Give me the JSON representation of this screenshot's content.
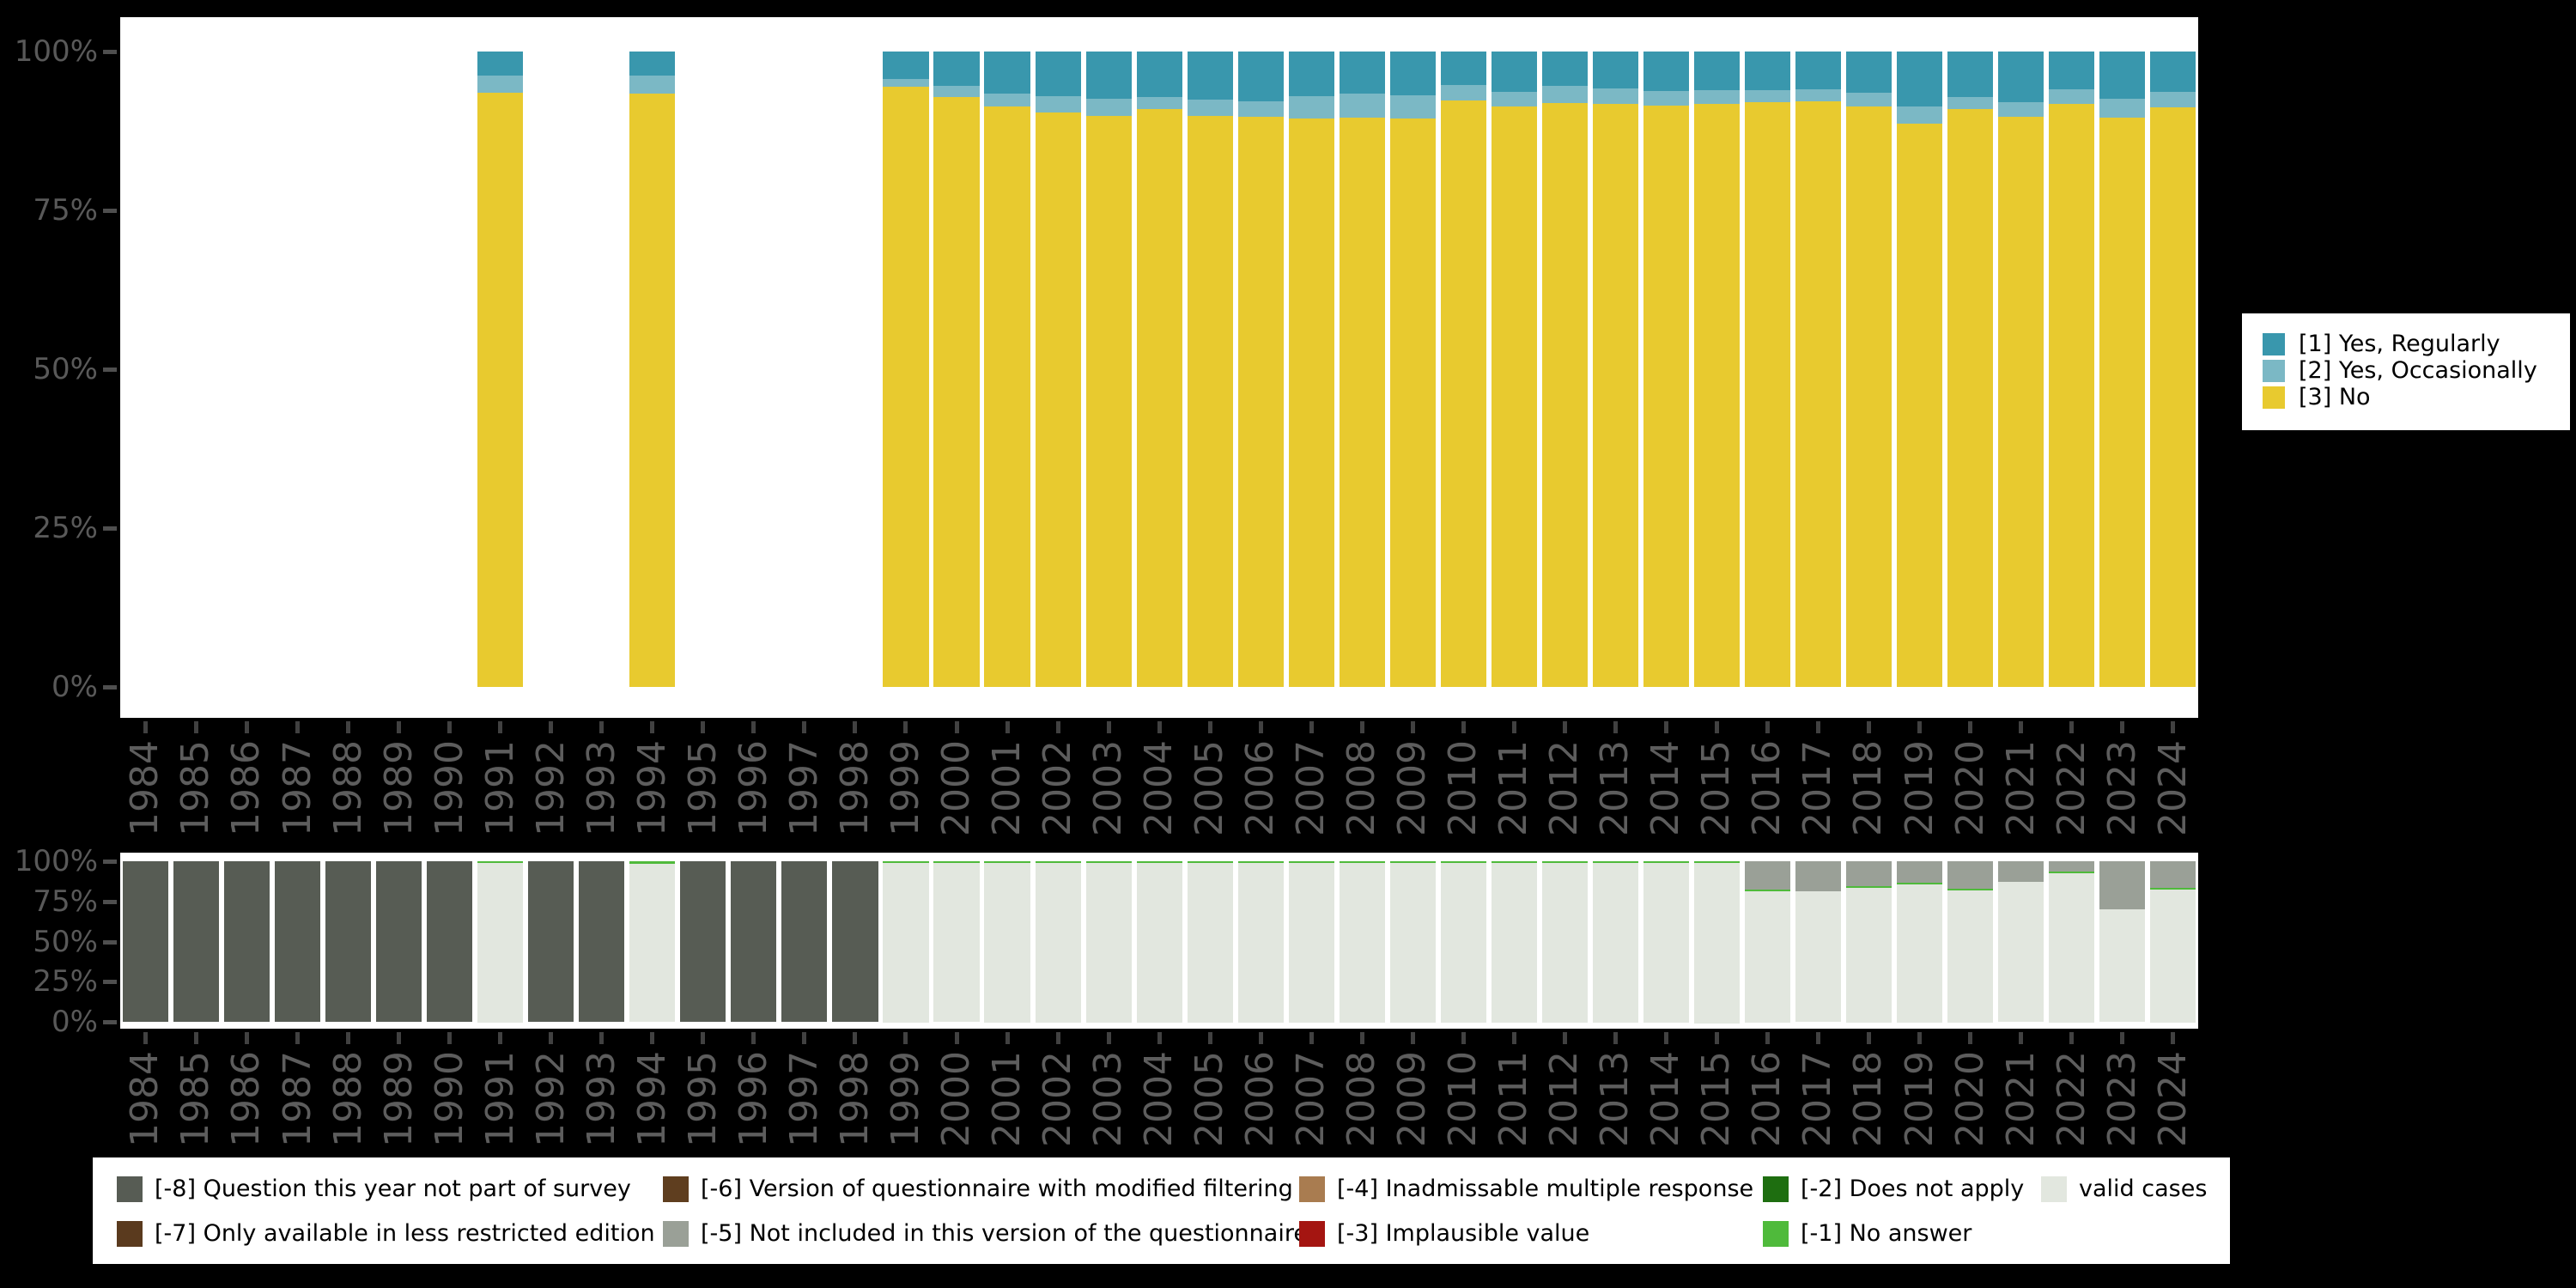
{
  "chart_data": [
    {
      "id": "response-distribution-by-year",
      "type": "bar",
      "stacked": true,
      "unit": "percent",
      "grid": false,
      "legend_position": "right",
      "ylim": [
        0,
        100
      ],
      "y_tick_labels": [
        "100%",
        "75%",
        "50%",
        "25%",
        "0%"
      ],
      "x_tick_labels": [
        "1984",
        "1985",
        "1986",
        "1987",
        "1988",
        "1989",
        "1990",
        "1991",
        "1992",
        "1993",
        "1994",
        "1995",
        "1996",
        "1997",
        "1998",
        "1999",
        "2000",
        "2001",
        "2002",
        "2003",
        "2004",
        "2005",
        "2006",
        "2007",
        "2008",
        "2009",
        "2010",
        "2011",
        "2012",
        "2013",
        "2014",
        "2015",
        "2016",
        "2017",
        "2018",
        "2019",
        "2020",
        "2021",
        "2022",
        "2023",
        "2024"
      ],
      "series": [
        {
          "code": "1",
          "name": "[1] Yes, Regularly",
          "color": "#3997AD"
        },
        {
          "code": "2",
          "name": "[2] Yes, Occasionally",
          "color": "#7BB8C5"
        },
        {
          "code": "3",
          "name": "[3] No",
          "color": "#E8CA2F"
        }
      ],
      "bars_order": "top-to-bottom",
      "bars": {
        "1991": [
          [
            "1",
            3.8
          ],
          [
            "2",
            2.7
          ],
          [
            "3",
            93.5
          ]
        ],
        "1994": [
          [
            "1",
            3.8
          ],
          [
            "2",
            2.8
          ],
          [
            "3",
            93.4
          ]
        ],
        "1999": [
          [
            "1",
            4.3
          ],
          [
            "2",
            1.2
          ],
          [
            "3",
            94.5
          ]
        ],
        "2000": [
          [
            "1",
            5.4
          ],
          [
            "2",
            1.8
          ],
          [
            "3",
            92.8
          ]
        ],
        "2001": [
          [
            "1",
            6.6
          ],
          [
            "2",
            2.0
          ],
          [
            "3",
            91.4
          ]
        ],
        "2002": [
          [
            "1",
            7.0
          ],
          [
            "2",
            2.6
          ],
          [
            "3",
            90.4
          ]
        ],
        "2003": [
          [
            "1",
            7.4
          ],
          [
            "2",
            2.8
          ],
          [
            "3",
            89.8
          ]
        ],
        "2004": [
          [
            "1",
            7.2
          ],
          [
            "2",
            1.9
          ],
          [
            "3",
            90.9
          ]
        ],
        "2005": [
          [
            "1",
            7.6
          ],
          [
            "2",
            2.6
          ],
          [
            "3",
            89.8
          ]
        ],
        "2006": [
          [
            "1",
            7.8
          ],
          [
            "2",
            2.5
          ],
          [
            "3",
            89.7
          ]
        ],
        "2007": [
          [
            "1",
            7.0
          ],
          [
            "2",
            3.5
          ],
          [
            "3",
            89.5
          ]
        ],
        "2008": [
          [
            "1",
            6.6
          ],
          [
            "2",
            3.8
          ],
          [
            "3",
            89.6
          ]
        ],
        "2009": [
          [
            "1",
            6.9
          ],
          [
            "2",
            3.6
          ],
          [
            "3",
            89.5
          ]
        ],
        "2010": [
          [
            "1",
            5.3
          ],
          [
            "2",
            2.4
          ],
          [
            "3",
            92.3
          ]
        ],
        "2011": [
          [
            "1",
            6.3
          ],
          [
            "2",
            2.4
          ],
          [
            "3",
            91.3
          ]
        ],
        "2012": [
          [
            "1",
            5.4
          ],
          [
            "2",
            2.7
          ],
          [
            "3",
            91.9
          ]
        ],
        "2013": [
          [
            "1",
            5.8
          ],
          [
            "2",
            2.4
          ],
          [
            "3",
            91.8
          ]
        ],
        "2014": [
          [
            "1",
            6.2
          ],
          [
            "2",
            2.3
          ],
          [
            "3",
            91.5
          ]
        ],
        "2015": [
          [
            "1",
            6.1
          ],
          [
            "2",
            2.2
          ],
          [
            "3",
            91.7
          ]
        ],
        "2016": [
          [
            "1",
            6.1
          ],
          [
            "2",
            1.9
          ],
          [
            "3",
            92.0
          ]
        ],
        "2017": [
          [
            "1",
            6.0
          ],
          [
            "2",
            1.9
          ],
          [
            "3",
            92.1
          ]
        ],
        "2018": [
          [
            "1",
            6.5
          ],
          [
            "2",
            2.1
          ],
          [
            "3",
            91.4
          ]
        ],
        "2019": [
          [
            "1",
            8.6
          ],
          [
            "2",
            2.7
          ],
          [
            "3",
            88.7
          ]
        ],
        "2020": [
          [
            "1",
            7.1
          ],
          [
            "2",
            2.0
          ],
          [
            "3",
            90.9
          ]
        ],
        "2021": [
          [
            "1",
            8.0
          ],
          [
            "2",
            2.3
          ],
          [
            "3",
            89.7
          ]
        ],
        "2022": [
          [
            "1",
            6.0
          ],
          [
            "2",
            2.3
          ],
          [
            "3",
            91.7
          ]
        ],
        "2023": [
          [
            "1",
            7.4
          ],
          [
            "2",
            3.0
          ],
          [
            "3",
            89.6
          ]
        ],
        "2024": [
          [
            "1",
            6.4
          ],
          [
            "2",
            2.4
          ],
          [
            "3",
            91.2
          ]
        ]
      }
    },
    {
      "id": "missing-values-by-year",
      "type": "bar",
      "stacked": true,
      "unit": "percent",
      "grid": false,
      "legend_position": "bottom",
      "ylim": [
        0,
        100
      ],
      "y_tick_labels": [
        "100%",
        "75%",
        "50%",
        "25%",
        "0%"
      ],
      "x_tick_labels": [
        "1984",
        "1985",
        "1986",
        "1987",
        "1988",
        "1989",
        "1990",
        "1991",
        "1992",
        "1993",
        "1994",
        "1995",
        "1996",
        "1997",
        "1998",
        "1999",
        "2000",
        "2001",
        "2002",
        "2003",
        "2004",
        "2005",
        "2006",
        "2007",
        "2008",
        "2009",
        "2010",
        "2011",
        "2012",
        "2013",
        "2014",
        "2015",
        "2016",
        "2017",
        "2018",
        "2019",
        "2020",
        "2021",
        "2022",
        "2023",
        "2024"
      ],
      "series": [
        {
          "code": "-8",
          "name": "[-8] Question this year not part of survey",
          "color": "#575C54"
        },
        {
          "code": "-7",
          "name": "[-7] Only available in less restricted edition",
          "color": "#5A3A1E"
        },
        {
          "code": "-6",
          "name": "[-6] Version of questionnaire with modified filtering",
          "color": "#5F3E1F"
        },
        {
          "code": "-5",
          "name": "[-5] Not included in this version of the questionnaire",
          "color": "#9AA097"
        },
        {
          "code": "-4",
          "name": "[-4] Inadmissable multiple response",
          "color": "#A97C50"
        },
        {
          "code": "-3",
          "name": "[-3] Implausible value",
          "color": "#A41511"
        },
        {
          "code": "-2",
          "name": "[-2] Does not apply",
          "color": "#1E6E10"
        },
        {
          "code": "-1",
          "name": "[-1] No answer",
          "color": "#4FBA3B"
        },
        {
          "code": "valid",
          "name": "valid cases",
          "color": "#E2E7DF"
        }
      ],
      "bars_order": "top-to-bottom",
      "bars": {
        "1984": [
          [
            "-8",
            100
          ]
        ],
        "1985": [
          [
            "-8",
            100
          ]
        ],
        "1986": [
          [
            "-8",
            100
          ]
        ],
        "1987": [
          [
            "-8",
            100
          ]
        ],
        "1988": [
          [
            "-8",
            100
          ]
        ],
        "1989": [
          [
            "-8",
            100
          ]
        ],
        "1990": [
          [
            "-8",
            100
          ]
        ],
        "1991": [
          [
            "-1",
            0.8
          ],
          [
            "valid",
            99.2
          ]
        ],
        "1992": [
          [
            "-8",
            100
          ]
        ],
        "1993": [
          [
            "-8",
            100
          ]
        ],
        "1994": [
          [
            "-1",
            1.4
          ],
          [
            "valid",
            98.6
          ]
        ],
        "1995": [
          [
            "-8",
            100
          ]
        ],
        "1996": [
          [
            "-8",
            100
          ]
        ],
        "1997": [
          [
            "-8",
            100
          ]
        ],
        "1998": [
          [
            "-8",
            100
          ]
        ],
        "1999": [
          [
            "-1",
            0.4
          ],
          [
            "valid",
            99.6
          ]
        ],
        "2000": [
          [
            "-1",
            1.0
          ],
          [
            "valid",
            99.0
          ]
        ],
        "2001": [
          [
            "-1",
            0.4
          ],
          [
            "valid",
            99.6
          ]
        ],
        "2002": [
          [
            "-1",
            0.4
          ],
          [
            "valid",
            99.6
          ]
        ],
        "2003": [
          [
            "-1",
            0.4
          ],
          [
            "valid",
            99.6
          ]
        ],
        "2004": [
          [
            "-1",
            0.3
          ],
          [
            "valid",
            99.7
          ]
        ],
        "2005": [
          [
            "-1",
            0.3
          ],
          [
            "valid",
            99.7
          ]
        ],
        "2006": [
          [
            "-1",
            0.3
          ],
          [
            "valid",
            99.7
          ]
        ],
        "2007": [
          [
            "-1",
            0.4
          ],
          [
            "valid",
            99.6
          ]
        ],
        "2008": [
          [
            "-1",
            0.4
          ],
          [
            "valid",
            99.6
          ]
        ],
        "2009": [
          [
            "-1",
            0.8
          ],
          [
            "valid",
            99.2
          ]
        ],
        "2010": [
          [
            "-1",
            0.4
          ],
          [
            "valid",
            99.6
          ]
        ],
        "2011": [
          [
            "-1",
            0.3
          ],
          [
            "valid",
            99.7
          ]
        ],
        "2012": [
          [
            "-1",
            0.3
          ],
          [
            "valid",
            99.7
          ]
        ],
        "2013": [
          [
            "-1",
            0.4
          ],
          [
            "valid",
            99.6
          ]
        ],
        "2014": [
          [
            "-1",
            0.3
          ],
          [
            "valid",
            99.7
          ]
        ],
        "2015": [
          [
            "-1",
            0.2
          ],
          [
            "valid",
            99.8
          ]
        ],
        "2016": [
          [
            "-5",
            17.7
          ],
          [
            "-1",
            0.4
          ],
          [
            "valid",
            81.9
          ]
        ],
        "2017": [
          [
            "-5",
            18.6
          ],
          [
            "valid",
            81.4
          ]
        ],
        "2018": [
          [
            "-5",
            15.5
          ],
          [
            "-1",
            0.4
          ],
          [
            "valid",
            84.1
          ]
        ],
        "2019": [
          [
            "-5",
            13.6
          ],
          [
            "-1",
            0.4
          ],
          [
            "valid",
            86.0
          ]
        ],
        "2020": [
          [
            "-5",
            16.9
          ],
          [
            "-1",
            0.4
          ],
          [
            "valid",
            82.7
          ]
        ],
        "2021": [
          [
            "-5",
            13.1
          ],
          [
            "valid",
            86.9
          ]
        ],
        "2022": [
          [
            "-5",
            6.4
          ],
          [
            "-1",
            0.5
          ],
          [
            "valid",
            93.1
          ]
        ],
        "2023": [
          [
            "-5",
            30.0
          ],
          [
            "valid",
            70.0
          ]
        ],
        "2024": [
          [
            "-5",
            16.6
          ],
          [
            "-1",
            0.4
          ],
          [
            "valid",
            83.0
          ]
        ]
      }
    }
  ]
}
